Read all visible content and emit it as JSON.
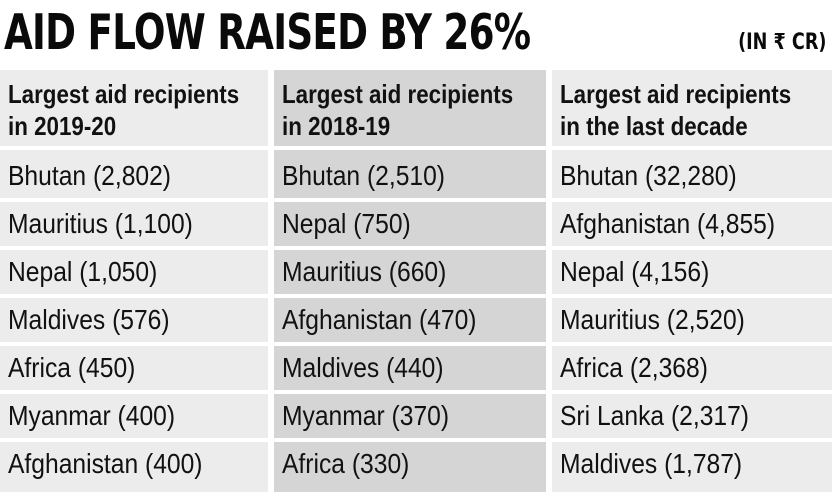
{
  "chart_data": {
    "type": "table",
    "title": "AID FLOW RAISED BY 26%",
    "unit": "(IN ₹ CR)",
    "columns": [
      {
        "header": [
          "Largest aid recipients",
          "in 2019-20"
        ],
        "rows": [
          "Bhutan (2,802)",
          "Mauritius (1,100)",
          "Nepal (1,050)",
          "Maldives (576)",
          "Africa (450)",
          "Myanmar (400)",
          "Afghanistan (400)"
        ]
      },
      {
        "header": [
          "Largest aid recipients",
          "in 2018-19"
        ],
        "rows": [
          "Bhutan (2,510)",
          "Nepal (750)",
          "Mauritius (660)",
          "Afghanistan (470)",
          "Maldives (440)",
          "Myanmar (370)",
          "Africa (330)"
        ]
      },
      {
        "header": [
          "Largest aid recipients",
          "in the last decade"
        ],
        "rows": [
          "Bhutan (32,280)",
          "Afghanistan (4,855)",
          "Nepal (4,156)",
          "Mauritius (2,520)",
          "Africa (2,368)",
          "Sri Lanka (2,317)",
          "Maldives (1,787)"
        ]
      }
    ],
    "colors": {
      "light_column": "#ececec",
      "dark_column": "#d5d5d5"
    }
  }
}
